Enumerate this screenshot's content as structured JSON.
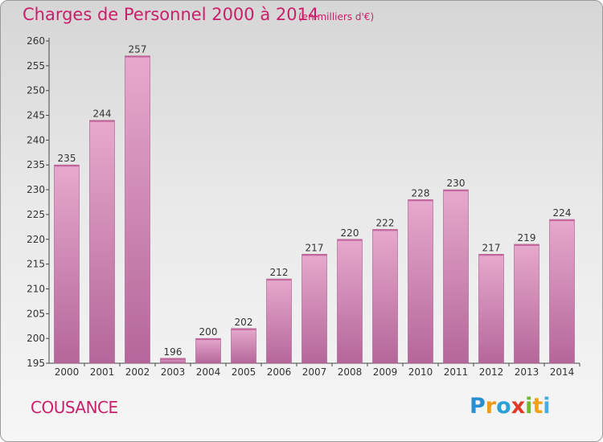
{
  "header": {
    "title": "Charges de Personnel 2000 à 2014",
    "subtitle": "(en milliers d'€)"
  },
  "footer": {
    "place": "COUSANCE",
    "logo": "Proxiti"
  },
  "colors": {
    "title": "#c8206a",
    "bar_top": "#e6a9cc",
    "bar_bottom": "#b4679a"
  },
  "chart_data": {
    "type": "bar",
    "title": "Charges de Personnel 2000 à 2014",
    "subtitle": "(en milliers d'€)",
    "categories": [
      "2000",
      "2001",
      "2002",
      "2003",
      "2004",
      "2005",
      "2006",
      "2007",
      "2008",
      "2009",
      "2010",
      "2011",
      "2012",
      "2013",
      "2014"
    ],
    "values": [
      235,
      244,
      257,
      196,
      200,
      202,
      212,
      217,
      220,
      222,
      228,
      230,
      217,
      219,
      224
    ],
    "xlabel": "",
    "ylabel": "",
    "ylim": [
      195,
      260
    ],
    "yticks": [
      195,
      200,
      205,
      210,
      215,
      220,
      225,
      230,
      235,
      240,
      245,
      250,
      255,
      260
    ],
    "grid": false,
    "data_labels": true
  }
}
